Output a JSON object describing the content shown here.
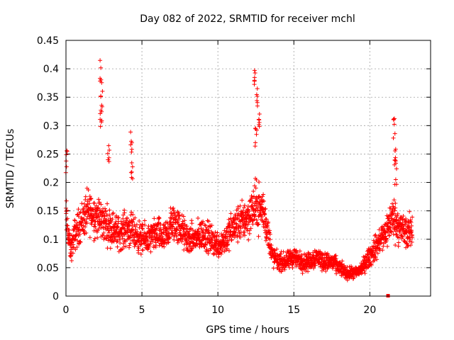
{
  "chart_data": {
    "type": "scatter",
    "title": "Day 082 of 2022, SRMTID for receiver mchl",
    "xlabel": "GPS time / hours",
    "ylabel": "SRMTID / TECUs",
    "xlim": [
      0,
      24
    ],
    "ylim": [
      0,
      0.45
    ],
    "xticks": [
      0,
      5,
      10,
      15,
      20
    ],
    "xtick_labels": [
      "0",
      "5",
      "10",
      "15",
      "20"
    ],
    "yticks": [
      0,
      0.05,
      0.1,
      0.15,
      0.2,
      0.25,
      0.3,
      0.35,
      0.4,
      0.45
    ],
    "ytick_labels": [
      "0",
      "0.05",
      "0.1",
      "0.15",
      "0.2",
      "0.25",
      "0.3",
      "0.35",
      "0.4",
      "0.45"
    ],
    "grid": true,
    "marker": "+",
    "color": "#ff0000",
    "series": [
      {
        "name": "SRMTID",
        "trend": [
          {
            "x": 0.0,
            "y": 0.14
          },
          {
            "x": 0.3,
            "y": 0.08
          },
          {
            "x": 0.6,
            "y": 0.11
          },
          {
            "x": 1.0,
            "y": 0.13
          },
          {
            "x": 1.5,
            "y": 0.15
          },
          {
            "x": 2.0,
            "y": 0.14
          },
          {
            "x": 2.5,
            "y": 0.13
          },
          {
            "x": 3.0,
            "y": 0.12
          },
          {
            "x": 3.5,
            "y": 0.11
          },
          {
            "x": 4.0,
            "y": 0.12
          },
          {
            "x": 4.5,
            "y": 0.11
          },
          {
            "x": 5.0,
            "y": 0.1
          },
          {
            "x": 5.5,
            "y": 0.1
          },
          {
            "x": 6.0,
            "y": 0.11
          },
          {
            "x": 6.5,
            "y": 0.1
          },
          {
            "x": 7.0,
            "y": 0.13
          },
          {
            "x": 7.5,
            "y": 0.12
          },
          {
            "x": 8.0,
            "y": 0.1
          },
          {
            "x": 8.5,
            "y": 0.1
          },
          {
            "x": 9.0,
            "y": 0.11
          },
          {
            "x": 9.5,
            "y": 0.1
          },
          {
            "x": 10.0,
            "y": 0.09
          },
          {
            "x": 10.5,
            "y": 0.1
          },
          {
            "x": 11.0,
            "y": 0.12
          },
          {
            "x": 11.5,
            "y": 0.13
          },
          {
            "x": 12.0,
            "y": 0.14
          },
          {
            "x": 12.5,
            "y": 0.16
          },
          {
            "x": 13.0,
            "y": 0.15
          },
          {
            "x": 13.3,
            "y": 0.11
          },
          {
            "x": 13.6,
            "y": 0.07
          },
          {
            "x": 14.0,
            "y": 0.06
          },
          {
            "x": 14.5,
            "y": 0.06
          },
          {
            "x": 15.0,
            "y": 0.07
          },
          {
            "x": 15.5,
            "y": 0.06
          },
          {
            "x": 16.0,
            "y": 0.06
          },
          {
            "x": 16.5,
            "y": 0.07
          },
          {
            "x": 17.0,
            "y": 0.06
          },
          {
            "x": 17.5,
            "y": 0.06
          },
          {
            "x": 18.0,
            "y": 0.05
          },
          {
            "x": 18.5,
            "y": 0.04
          },
          {
            "x": 19.0,
            "y": 0.04
          },
          {
            "x": 19.5,
            "y": 0.05
          },
          {
            "x": 20.0,
            "y": 0.07
          },
          {
            "x": 20.5,
            "y": 0.09
          },
          {
            "x": 21.0,
            "y": 0.11
          },
          {
            "x": 21.5,
            "y": 0.14
          },
          {
            "x": 22.0,
            "y": 0.12
          },
          {
            "x": 22.5,
            "y": 0.11
          },
          {
            "x": 22.8,
            "y": 0.12
          }
        ],
        "spikes": [
          {
            "x": 0.05,
            "y": 0.26
          },
          {
            "x": 2.3,
            "y": 0.42
          },
          {
            "x": 2.35,
            "y": 0.37
          },
          {
            "x": 2.3,
            "y": 0.33
          },
          {
            "x": 2.8,
            "y": 0.28
          },
          {
            "x": 4.3,
            "y": 0.3
          },
          {
            "x": 4.35,
            "y": 0.25
          },
          {
            "x": 12.45,
            "y": 0.42
          },
          {
            "x": 12.6,
            "y": 0.38
          },
          {
            "x": 12.7,
            "y": 0.34
          },
          {
            "x": 12.5,
            "y": 0.3
          },
          {
            "x": 21.6,
            "y": 0.32
          },
          {
            "x": 21.65,
            "y": 0.28
          },
          {
            "x": 21.7,
            "y": 0.24
          }
        ],
        "outlier": {
          "x": 21.2,
          "y": 0.0
        }
      }
    ]
  }
}
